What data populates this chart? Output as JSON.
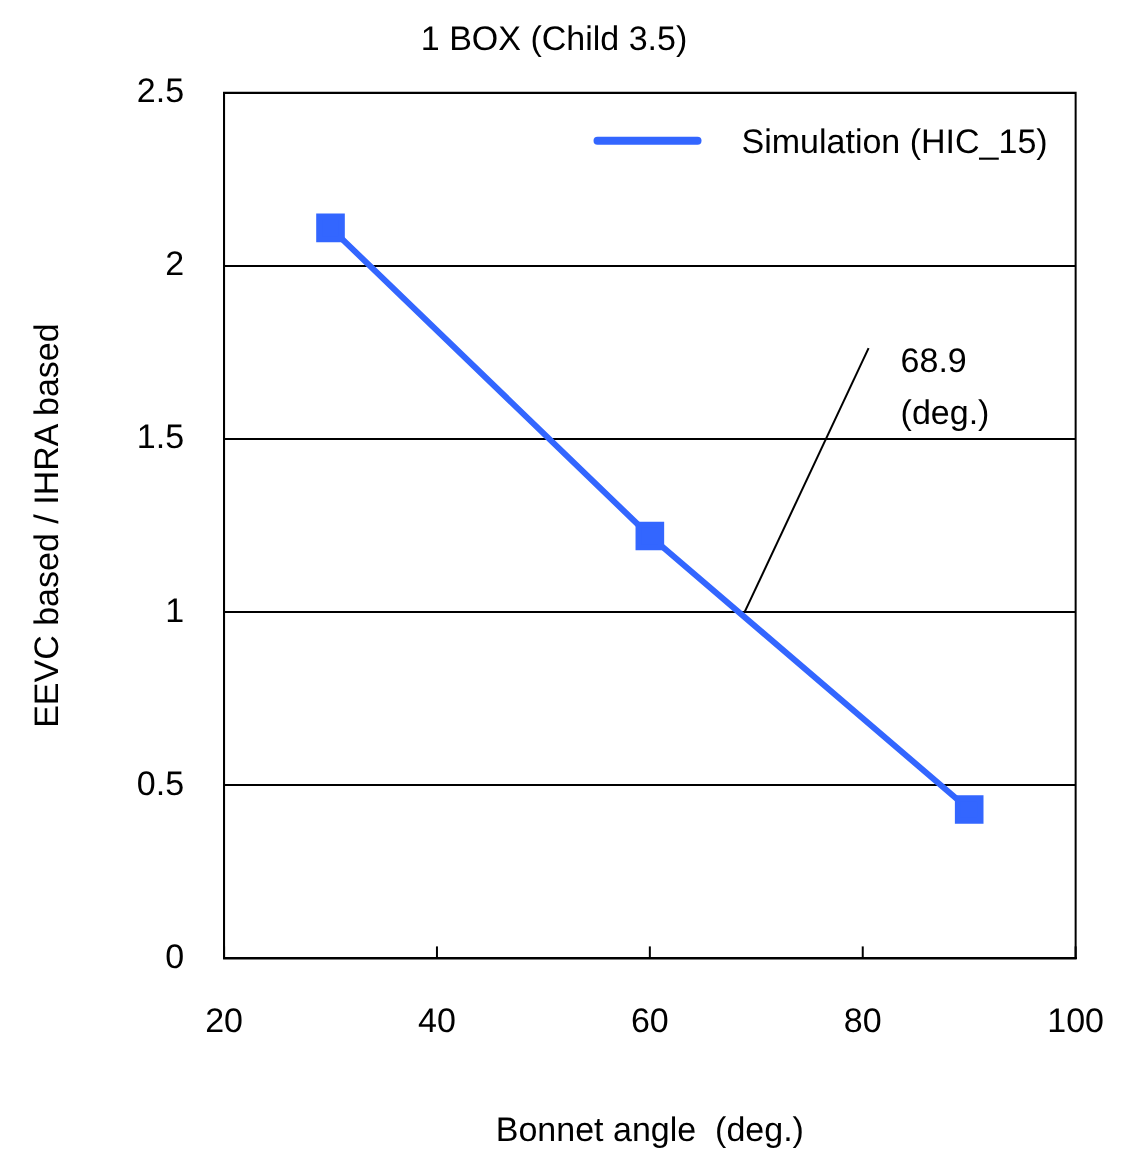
{
  "chart_data": {
    "type": "line",
    "title": "1 BOX (Child 3.5)",
    "xlabel": "Bonnet angle  (deg.)",
    "ylabel": "EEVC based / IHRA based",
    "x": [
      30,
      60,
      90
    ],
    "series": [
      {
        "name": "Simulation (HIC_15)",
        "color": "#3366ff",
        "values": [
          2.11,
          1.22,
          0.43
        ]
      }
    ],
    "xlim": [
      20,
      100
    ],
    "xticks": [
      20,
      40,
      60,
      80,
      100
    ],
    "ylim": [
      0,
      2.5
    ],
    "yticks": [
      0,
      0.5,
      1,
      1.5,
      2,
      2.5
    ],
    "grid": "y",
    "legend": "top right",
    "marker": "square",
    "line_style": "solid",
    "annotations": [
      {
        "text": "68.9\n(deg.)",
        "x": 68.9,
        "y": 1
      }
    ]
  }
}
